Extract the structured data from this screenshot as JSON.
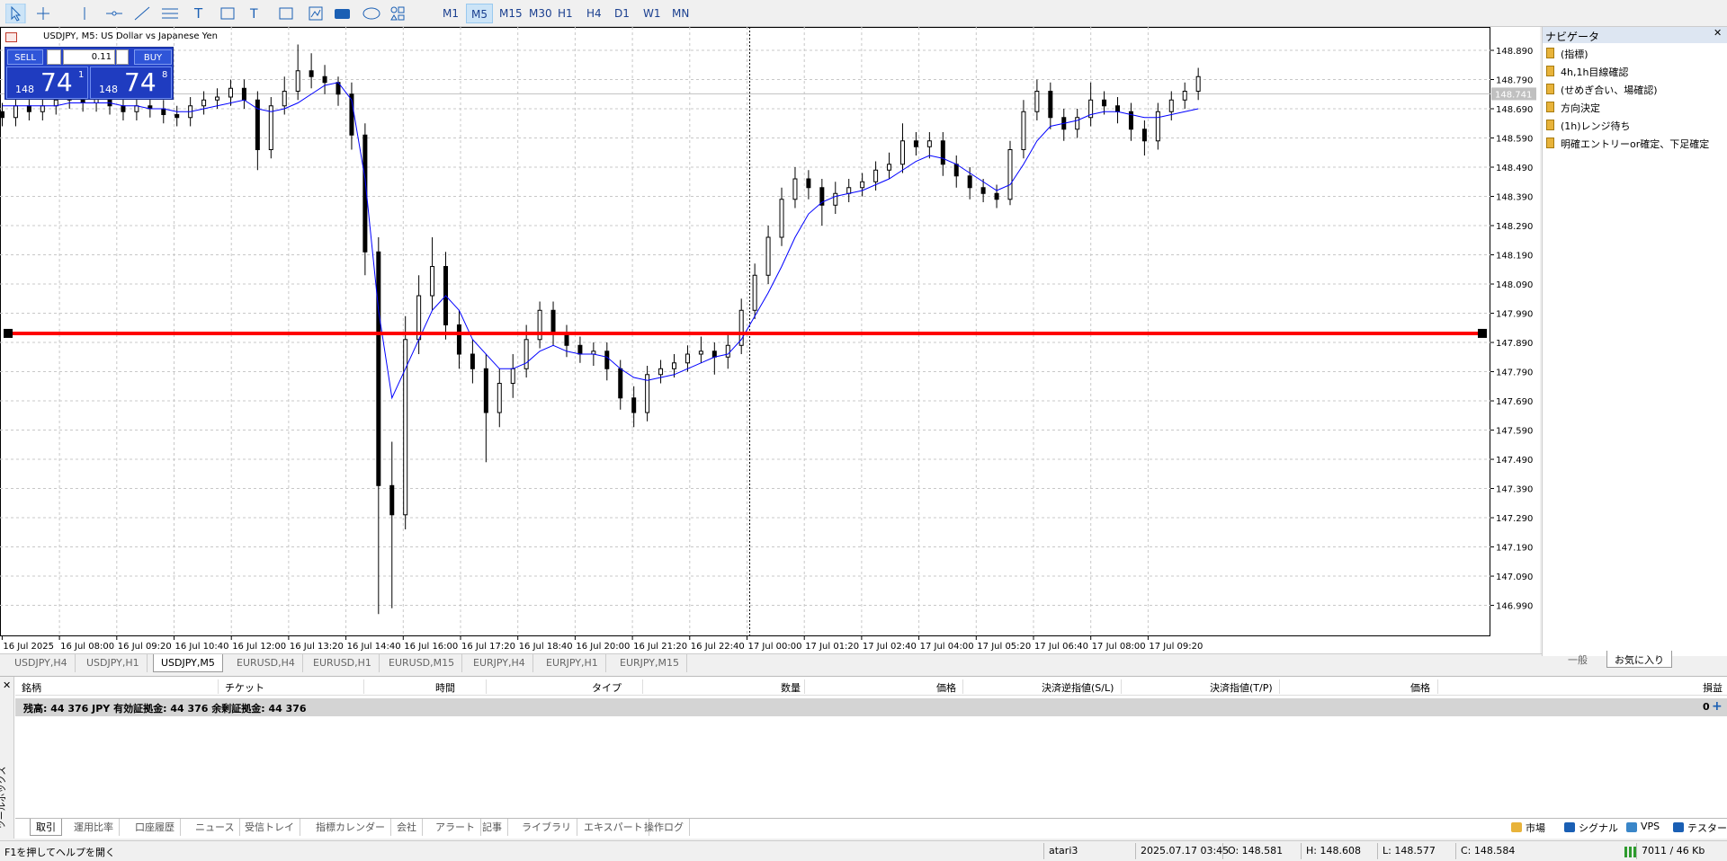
{
  "toolbar": {
    "timeframes": [
      "M1",
      "M5",
      "M15",
      "M30",
      "H1",
      "H4",
      "D1",
      "W1",
      "MN"
    ],
    "active": "M5"
  },
  "chart": {
    "header": "USDJPY, M5:  US Dollar vs Japanese Yen",
    "trade": {
      "sell": "SELL",
      "buy": "BUY",
      "lot": "0.11",
      "bid": {
        "big": "148",
        "pips": "74",
        "point": "1"
      },
      "ask": {
        "big": "148",
        "pips": "74",
        "point": "8"
      }
    }
  },
  "chart_data": {
    "type": "candlestick",
    "open": [
      148.68,
      148.66,
      148.7,
      148.68,
      148.7,
      148.72,
      148.74,
      148.71,
      148.73,
      148.7,
      148.68,
      148.7,
      148.69,
      148.67,
      148.66,
      148.7,
      148.72,
      148.73,
      148.76,
      148.72,
      148.55,
      148.7,
      148.75,
      148.82,
      148.8,
      148.78,
      148.74,
      148.6,
      148.2,
      147.4,
      147.3,
      147.9,
      148.05,
      148.15,
      147.95,
      147.85,
      147.8,
      147.65,
      147.75,
      147.8,
      147.9,
      148.0,
      147.92,
      147.88,
      147.85,
      147.86,
      147.8,
      147.7,
      147.65,
      147.78,
      147.8,
      147.82,
      147.85,
      147.86,
      147.84,
      147.88,
      148.0,
      148.12,
      148.25,
      148.38,
      148.45,
      148.42,
      148.36,
      148.4,
      148.42,
      148.44,
      148.48,
      148.5,
      148.58,
      148.56,
      148.58,
      148.5,
      148.46,
      148.42,
      148.4,
      148.38,
      148.55,
      148.68,
      148.75,
      148.66,
      148.62,
      148.66,
      148.72,
      148.7,
      148.68,
      148.62,
      148.58,
      148.68,
      148.72,
      148.75
    ],
    "high": [
      148.71,
      148.73,
      148.73,
      148.73,
      148.75,
      148.77,
      148.77,
      148.76,
      148.76,
      148.73,
      148.73,
      148.73,
      148.72,
      148.7,
      148.73,
      148.75,
      148.76,
      148.79,
      148.79,
      148.75,
      148.73,
      148.8,
      148.91,
      148.88,
      148.84,
      148.8,
      148.78,
      148.64,
      148.25,
      147.55,
      147.98,
      148.12,
      148.25,
      148.2,
      148.0,
      147.9,
      147.85,
      147.8,
      147.85,
      147.95,
      148.03,
      148.03,
      147.95,
      147.91,
      147.89,
      147.89,
      147.83,
      147.74,
      147.81,
      147.83,
      147.85,
      147.88,
      147.91,
      147.89,
      147.92,
      148.04,
      148.16,
      148.29,
      148.42,
      148.49,
      148.48,
      148.45,
      148.44,
      148.45,
      148.47,
      148.51,
      148.54,
      148.64,
      148.61,
      148.61,
      148.61,
      148.53,
      148.49,
      148.45,
      148.43,
      148.58,
      148.72,
      148.79,
      148.78,
      148.69,
      148.69,
      148.78,
      148.75,
      148.73,
      148.71,
      148.65,
      148.71,
      148.75,
      148.78,
      148.83
    ],
    "low": [
      148.63,
      148.63,
      148.65,
      148.65,
      148.67,
      148.69,
      148.68,
      148.68,
      148.67,
      148.65,
      148.65,
      148.66,
      148.64,
      148.63,
      148.63,
      148.67,
      148.69,
      148.7,
      148.69,
      148.48,
      148.52,
      148.67,
      148.72,
      148.76,
      148.74,
      148.7,
      148.55,
      148.12,
      146.96,
      146.98,
      147.25,
      147.85,
      148.0,
      147.9,
      147.8,
      147.75,
      147.48,
      147.6,
      147.7,
      147.77,
      147.87,
      147.88,
      147.84,
      147.82,
      147.81,
      147.76,
      147.66,
      147.6,
      147.62,
      147.75,
      147.77,
      147.79,
      147.82,
      147.78,
      147.8,
      147.85,
      147.97,
      148.09,
      148.22,
      148.35,
      148.38,
      148.29,
      148.33,
      148.37,
      148.39,
      148.41,
      148.45,
      148.47,
      148.53,
      148.52,
      148.46,
      148.42,
      148.38,
      148.37,
      148.35,
      148.36,
      148.52,
      148.65,
      148.62,
      148.58,
      148.59,
      148.63,
      148.67,
      148.64,
      148.58,
      148.53,
      148.55,
      148.65,
      148.69,
      148.72
    ],
    "close": [
      148.66,
      148.7,
      148.68,
      148.7,
      148.72,
      148.74,
      148.71,
      148.73,
      148.7,
      148.68,
      148.7,
      148.69,
      148.67,
      148.66,
      148.7,
      148.72,
      148.73,
      148.76,
      148.72,
      148.55,
      148.7,
      148.75,
      148.82,
      148.8,
      148.78,
      148.74,
      148.6,
      148.2,
      147.4,
      147.3,
      147.9,
      148.05,
      148.15,
      147.95,
      147.85,
      147.8,
      147.65,
      147.75,
      147.8,
      147.9,
      148.0,
      147.92,
      147.88,
      147.85,
      147.86,
      147.8,
      147.7,
      147.65,
      147.78,
      147.8,
      147.82,
      147.85,
      147.86,
      147.84,
      147.88,
      148.0,
      148.12,
      148.25,
      148.38,
      148.45,
      148.42,
      148.36,
      148.4,
      148.42,
      148.44,
      148.48,
      148.5,
      148.58,
      148.56,
      148.58,
      148.5,
      148.46,
      148.42,
      148.4,
      148.38,
      148.55,
      148.68,
      148.75,
      148.66,
      148.62,
      148.66,
      148.72,
      148.7,
      148.68,
      148.62,
      148.58,
      148.68,
      148.72,
      148.75,
      148.8
    ],
    "ma": [
      148.7,
      148.7,
      148.7,
      148.7,
      148.7,
      148.71,
      148.71,
      148.71,
      148.71,
      148.7,
      148.7,
      148.69,
      148.69,
      148.68,
      148.68,
      148.69,
      148.7,
      148.71,
      148.72,
      148.69,
      148.68,
      148.69,
      148.71,
      148.74,
      148.77,
      148.78,
      148.72,
      148.45,
      148.0,
      147.7,
      147.8,
      147.9,
      148.0,
      148.05,
      148.0,
      147.9,
      147.85,
      147.8,
      147.8,
      147.82,
      147.86,
      147.88,
      147.86,
      147.85,
      147.85,
      147.84,
      147.8,
      147.77,
      147.76,
      147.77,
      147.78,
      147.8,
      147.82,
      147.84,
      147.85,
      147.9,
      147.98,
      148.06,
      148.15,
      148.25,
      148.33,
      148.37,
      148.39,
      148.4,
      148.41,
      148.43,
      148.45,
      148.48,
      148.51,
      148.53,
      148.52,
      148.5,
      148.47,
      148.44,
      148.41,
      148.43,
      148.5,
      148.58,
      148.63,
      148.64,
      148.65,
      148.67,
      148.68,
      148.68,
      148.67,
      148.66,
      148.66,
      148.67,
      148.68,
      148.69
    ],
    "color": "#000000",
    "ma_color": "#0000ff",
    "ylim": [
      146.884,
      148.97
    ],
    "yticks": [
      {
        "value": 146.99,
        "label": "146.990"
      },
      {
        "value": 147.09,
        "label": "147.090"
      },
      {
        "value": 147.19,
        "label": "147.190"
      },
      {
        "value": 147.29,
        "label": "147.290"
      },
      {
        "value": 147.39,
        "label": "147.390"
      },
      {
        "value": 147.49,
        "label": "147.490"
      },
      {
        "value": 147.59,
        "label": "147.590"
      },
      {
        "value": 147.69,
        "label": "147.690"
      },
      {
        "value": 147.79,
        "label": "147.790"
      },
      {
        "value": 147.89,
        "label": "147.890"
      },
      {
        "value": 147.99,
        "label": "147.990"
      },
      {
        "value": 148.09,
        "label": "148.090"
      },
      {
        "value": 148.19,
        "label": "148.190"
      },
      {
        "value": 148.29,
        "label": "148.290"
      },
      {
        "value": 148.39,
        "label": "148.390"
      },
      {
        "value": 148.49,
        "label": "148.490"
      },
      {
        "value": 148.59,
        "label": "148.590"
      },
      {
        "value": 148.69,
        "label": "148.690"
      },
      {
        "value": 148.79,
        "label": "148.790"
      },
      {
        "value": 148.89,
        "label": "148.890"
      }
    ],
    "time_labels": [
      "16 Jul 2025",
      "16 Jul 08:00",
      "16 Jul 09:20",
      "16 Jul 10:40",
      "16 Jul 12:00",
      "16 Jul 13:20",
      "16 Jul 14:40",
      "16 Jul 16:00",
      "16 Jul 17:20",
      "16 Jul 18:40",
      "16 Jul 20:00",
      "16 Jul 21:20",
      "16 Jul 22:40",
      "17 Jul 00:00",
      "17 Jul 01:20",
      "17 Jul 02:40",
      "17 Jul 04:00",
      "17 Jul 05:20",
      "17 Jul 06:40",
      "17 Jul 08:00",
      "17 Jul 09:20"
    ],
    "grid": true,
    "level": {
      "value": 147.921,
      "color": "#ff0000"
    },
    "price_line": 148.741
  },
  "navigator": {
    "title": "ナビゲータ",
    "items": [
      "(指標)",
      "4h,1h目線確認",
      "(せめぎ合い、場確認)",
      "方向決定",
      "(1h)レンジ待ち",
      "明確エントリーor確定、下足確定"
    ],
    "tabs": [
      "一般",
      "お気に入り"
    ],
    "active": "お気に入り"
  },
  "chart_tabs": {
    "tabs": [
      "USDJPY,H4",
      "USDJPY,H1",
      "USDJPY,M5",
      "EURUSD,H4",
      "EURUSD,H1",
      "EURUSD,M15",
      "EURJPY,H4",
      "EURJPY,H1",
      "EURJPY,M15"
    ],
    "active": "USDJPY,M5"
  },
  "toolbox": {
    "side_label": "ツールボックス",
    "columns": [
      "銘柄",
      "チケット",
      "時間",
      "タイプ",
      "数量",
      "価格",
      "決済逆指値(S/L)",
      "決済指値(T/P)",
      "価格",
      "損益"
    ],
    "balance": "残高: 44 376 JPY  有効証拠金: 44 376  余剰証拠金: 44 376",
    "profit": "0",
    "tabs": [
      "取引",
      "運用比率",
      "口座履歴",
      "ニュース",
      "受信トレイ",
      "指標カレンダー",
      "会社",
      "アラート",
      "記事",
      "ライブラリ",
      "エキスパート",
      "操作ログ"
    ],
    "active": "取引",
    "services": [
      "市場",
      "シグナル",
      "VPS",
      "テスター"
    ]
  },
  "status": {
    "help": "F1を押してヘルプを開く",
    "profile": "atari3",
    "time": "2025.07.17 03:45",
    "open": "O: 148.581",
    "high": "H: 148.608",
    "low": "L: 148.577",
    "close": "C: 148.584",
    "traffic": "7011 / 46 Kb"
  }
}
